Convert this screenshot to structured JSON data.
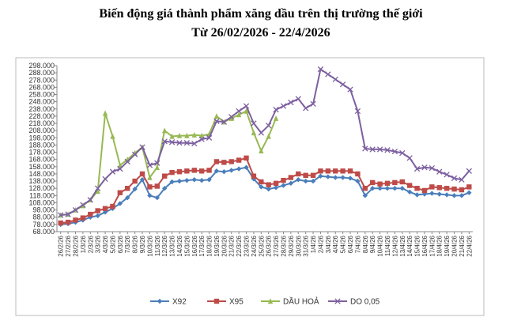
{
  "chart_data": {
    "type": "line",
    "title": "Biến động giá thành phẩm xăng dầu trên thị trường thế giới",
    "subtitle": "Từ 26/02/2026 - 22/4/2026",
    "categories": [
      "26/2/26",
      "27/2/26",
      "28/2/26",
      "1/3/26",
      "2/3/26",
      "3/3/26",
      "4/3/26",
      "5/3/26",
      "6/3/26",
      "7/3/26",
      "8/3/26",
      "9/3/26",
      "10/3/26",
      "11/3/26",
      "12/3/26",
      "13/3/26",
      "14/3/26",
      "15/3/26",
      "16/3/26",
      "17/3/26",
      "18/3/26",
      "19/3/26",
      "20/3/26",
      "21/3/26",
      "22/3/26",
      "23/3/26",
      "24/3/26",
      "25/3/26",
      "26/3/26",
      "27/3/26",
      "28/3/26",
      "29/3/26",
      "30/3/26",
      "31/3/26",
      "1/4/26",
      "2/4/26",
      "3/4/26",
      "4/4/26",
      "5/4/26",
      "6/4/26",
      "7/4/26",
      "8/4/26",
      "9/4/26",
      "10/4/26",
      "11/4/26",
      "12/4/26",
      "13/4/26",
      "14/4/26",
      "15/4/26",
      "16/4/26",
      "17/4/26",
      "18/4/26",
      "19/4/26",
      "20/4/26",
      "21/4/26",
      "22/4/26"
    ],
    "series": [
      {
        "name": "X92",
        "color": "#4a7ebb",
        "marker": "diamond",
        "values": [
          78000,
          79000,
          81000,
          84000,
          88000,
          90000,
          95000,
          100000,
          107000,
          115000,
          127000,
          140000,
          118000,
          115000,
          128000,
          137000,
          138000,
          139000,
          140000,
          139000,
          140000,
          152000,
          151000,
          153000,
          155000,
          157000,
          141000,
          130000,
          127000,
          129000,
          132000,
          135000,
          140000,
          138000,
          138000,
          145000,
          144000,
          143000,
          143000,
          142000,
          138000,
          118000,
          128000,
          128000,
          128000,
          128000,
          128000,
          123000,
          119000,
          120000,
          121000,
          120000,
          119000,
          118000,
          118000,
          122000
        ]
      },
      {
        "name": "X95",
        "color": "#be4b48",
        "marker": "square",
        "values": [
          80000,
          81000,
          84000,
          87000,
          92000,
          97000,
          100000,
          103000,
          122000,
          128000,
          138000,
          148000,
          130000,
          131000,
          145000,
          150000,
          151000,
          152000,
          153000,
          152000,
          153000,
          165000,
          164000,
          165000,
          167000,
          170000,
          145000,
          137000,
          133000,
          135000,
          139000,
          143000,
          148000,
          146000,
          146000,
          152000,
          152000,
          152000,
          152000,
          152000,
          148000,
          128000,
          136000,
          134000,
          135000,
          136000,
          137000,
          132000,
          128000,
          125000,
          130000,
          129000,
          128000,
          127000,
          126000,
          130000
        ]
      },
      {
        "name": "DẦU HOẢ",
        "color": "#98b954",
        "marker": "triangle",
        "values": [
          91000,
          92000,
          98000,
          104000,
          112000,
          124000,
          232000,
          200000,
          160000,
          168000,
          177000,
          185000,
          143000,
          157000,
          208000,
          200000,
          201000,
          201000,
          202000,
          201000,
          203000,
          228000,
          220000,
          225000,
          230000,
          235000,
          205000,
          180000,
          200000,
          225000,
          null,
          null,
          null,
          null,
          null,
          null,
          null,
          null,
          null,
          null,
          null,
          null,
          null,
          null,
          null,
          null,
          null,
          null,
          null,
          null,
          null,
          null,
          null,
          null,
          null,
          null
        ]
      },
      {
        "name": "DO 0,05",
        "color": "#7d60a0",
        "marker": "x",
        "values": [
          91000,
          92000,
          98000,
          105000,
          112000,
          128000,
          141000,
          151000,
          155000,
          165000,
          175000,
          185000,
          160000,
          163000,
          193000,
          192000,
          191000,
          191000,
          190000,
          196000,
          198000,
          221000,
          220000,
          227000,
          235000,
          242000,
          218000,
          205000,
          215000,
          237000,
          242000,
          247000,
          252000,
          239000,
          245000,
          293000,
          286000,
          279000,
          272000,
          265000,
          235000,
          183000,
          182000,
          182000,
          181000,
          179000,
          177000,
          170000,
          155000,
          157000,
          156000,
          151000,
          147000,
          142000,
          140000,
          152000
        ]
      }
    ],
    "ylim": [
      68000,
      298000
    ],
    "yticks": [
      {
        "value": 68000,
        "label": "68.000"
      },
      {
        "value": 78000,
        "label": "78.000"
      },
      {
        "value": 88000,
        "label": "88.000"
      },
      {
        "value": 98000,
        "label": "98.000"
      },
      {
        "value": 108000,
        "label": "108.000"
      },
      {
        "value": 118000,
        "label": "118.000"
      },
      {
        "value": 128000,
        "label": "128.000"
      },
      {
        "value": 138000,
        "label": "138.000"
      },
      {
        "value": 148000,
        "label": "148.000"
      },
      {
        "value": 158000,
        "label": "158.000"
      },
      {
        "value": 168000,
        "label": "168.000"
      },
      {
        "value": 178000,
        "label": "178.000"
      },
      {
        "value": 188000,
        "label": "188.000"
      },
      {
        "value": 198000,
        "label": "198.000"
      },
      {
        "value": 208000,
        "label": "208.000"
      },
      {
        "value": 218000,
        "label": "218.000"
      },
      {
        "value": 228000,
        "label": "228.000"
      },
      {
        "value": 238000,
        "label": "238.000"
      },
      {
        "value": 248000,
        "label": "248.000"
      },
      {
        "value": 258000,
        "label": "258.000"
      },
      {
        "value": 268000,
        "label": "268.000"
      },
      {
        "value": 278000,
        "label": "278.000"
      },
      {
        "value": 288000,
        "label": "288.000"
      },
      {
        "value": 298000,
        "label": "298.000"
      }
    ],
    "grid": false,
    "legend": "bottom"
  }
}
